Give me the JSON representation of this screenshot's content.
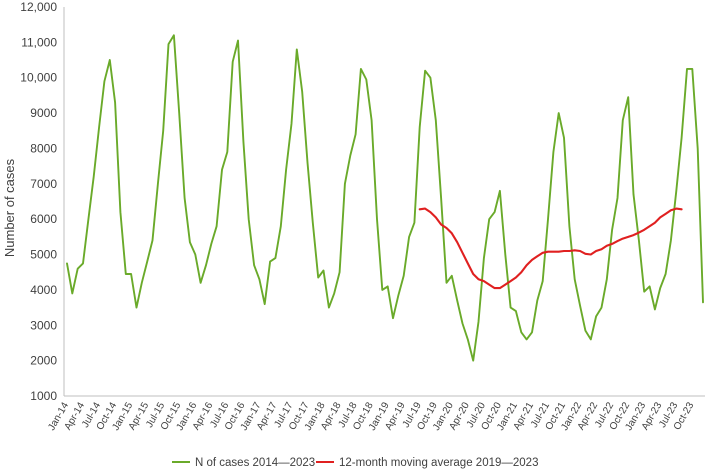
{
  "chart_data": {
    "type": "line",
    "title": "",
    "xlabel": "",
    "ylabel": "Number of cases",
    "ylim": [
      1000,
      12000
    ],
    "yticks": [
      "1000",
      "2000",
      "3000",
      "4000",
      "5000",
      "6000",
      "7000",
      "8000",
      "9000",
      "10,000",
      "11,000",
      "12,000"
    ],
    "ytick_values": [
      1000,
      2000,
      3000,
      4000,
      5000,
      6000,
      7000,
      8000,
      9000,
      10000,
      11000,
      12000
    ],
    "grid": false,
    "legend_position": "bottom",
    "x_labels": [
      "Jan-14",
      "Apr-14",
      "Jul-14",
      "Oct-14",
      "Jan-15",
      "Apr-15",
      "Jul-15",
      "Oct-15",
      "Jan-16",
      "Apr-16",
      "Jul-16",
      "Oct-16",
      "Jan-17",
      "Apr-17",
      "Jul-17",
      "Oct-17",
      "Jan-18",
      "Apr-18",
      "Jul-18",
      "Oct-18",
      "Jan-19",
      "Apr-19",
      "Jul-19",
      "Oct-19",
      "Jan-20",
      "Apr-20",
      "Jul-20",
      "Oct-20",
      "Jan-21",
      "Apr-21",
      "Jul-21",
      "Oct-21",
      "Jan-22",
      "Apr-22",
      "Jul-22",
      "Oct-22",
      "Jan-23",
      "Apr-23",
      "Jul-23",
      "Oct-23"
    ],
    "x_label_month_index": [
      0,
      3,
      6,
      9,
      12,
      15,
      18,
      21,
      24,
      27,
      30,
      33,
      36,
      39,
      42,
      45,
      48,
      51,
      54,
      57,
      60,
      63,
      66,
      69,
      72,
      75,
      78,
      81,
      84,
      87,
      90,
      93,
      96,
      99,
      102,
      105,
      108,
      111,
      114,
      117
    ],
    "months_count": 120,
    "series": [
      {
        "name": "N of cases 2014—2023",
        "color": "#6aaa2a",
        "start_month_index": 0,
        "values": [
          4750,
          3900,
          4600,
          4750,
          6000,
          7200,
          8600,
          9900,
          10500,
          9300,
          6200,
          4450,
          4450,
          3500,
          4200,
          4800,
          5400,
          7000,
          8500,
          10950,
          11200,
          9000,
          6600,
          5350,
          5000,
          4200,
          4700,
          5300,
          5800,
          7400,
          7900,
          10450,
          11050,
          8200,
          6000,
          4700,
          4300,
          3600,
          4800,
          4900,
          5800,
          7400,
          8700,
          10800,
          9600,
          7600,
          5900,
          4350,
          4550,
          3500,
          3900,
          4500,
          7000,
          7800,
          8400,
          10250,
          9950,
          8800,
          6000,
          4000,
          4100,
          3200,
          3850,
          4400,
          5500,
          5900,
          8600,
          10200,
          10000,
          8800,
          6600,
          4200,
          4400,
          3700,
          3050,
          2600,
          2000,
          3100,
          4900,
          6000,
          6200,
          6800,
          5000,
          3500,
          3400,
          2800,
          2600,
          2800,
          3700,
          4250,
          6000,
          7900,
          9000,
          8300,
          5800,
          4300,
          3550,
          2850,
          2600,
          3250,
          3500,
          4300,
          5700,
          6600,
          8800,
          9450,
          6700,
          5400,
          3950,
          4100,
          3450,
          4050,
          4450,
          5400,
          6800,
          8300,
          10250,
          10250,
          8000,
          3650
        ]
      },
      {
        "name": "12-month moving average 2019—2023",
        "color": "#e02020",
        "start_month_index": 66,
        "values": [
          6280,
          6300,
          6200,
          6050,
          5850,
          5750,
          5600,
          5350,
          5050,
          4750,
          4450,
          4300,
          4250,
          4150,
          4050,
          4050,
          4150,
          4250,
          4350,
          4500,
          4700,
          4850,
          4950,
          5050,
          5080,
          5080,
          5080,
          5100,
          5100,
          5120,
          5100,
          5020,
          5000,
          5100,
          5150,
          5250,
          5300,
          5380,
          5450,
          5500,
          5550,
          5620,
          5700,
          5800,
          5900,
          6050,
          6150,
          6250,
          6300,
          6280
        ]
      }
    ]
  }
}
